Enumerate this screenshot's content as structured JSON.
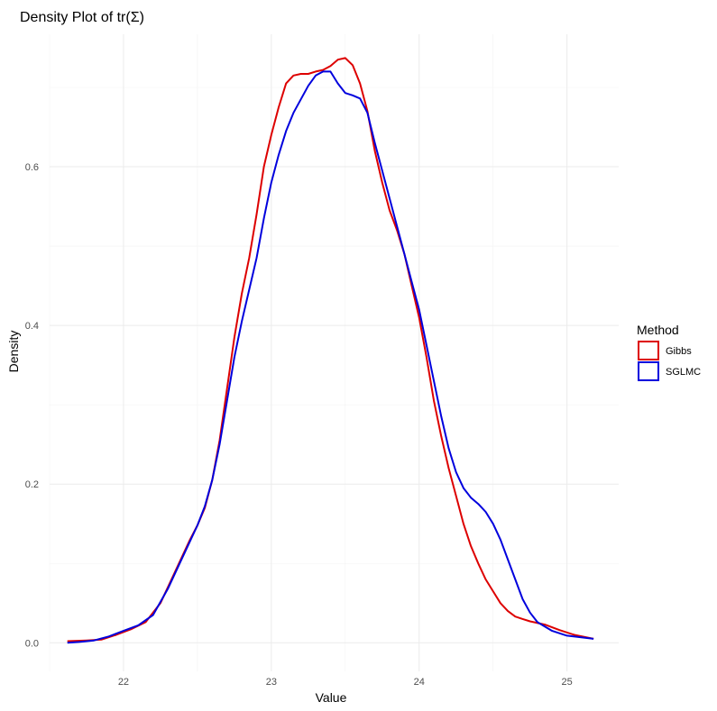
{
  "chart_data": {
    "type": "line",
    "title": "Density Plot of  tr(Σ)",
    "xlabel": "Value",
    "ylabel": "Density",
    "xlim": [
      21.5,
      25.35
    ],
    "ylim": [
      -0.036,
      0.767
    ],
    "x_ticks": [
      22,
      23,
      24,
      25
    ],
    "x_tick_labels": [
      "22",
      "23",
      "24",
      "25"
    ],
    "y_ticks": [
      0.0,
      0.2,
      0.4,
      0.6
    ],
    "y_tick_labels": [
      "0.0",
      "0.2",
      "0.4",
      "0.6"
    ],
    "grid": true,
    "legend": {
      "title": "Method",
      "position": "right",
      "entries": [
        "Gibbs",
        "SGLMC"
      ]
    },
    "series": [
      {
        "name": "Gibbs",
        "color": "#dd0000",
        "points": [
          [
            21.62,
            0.002
          ],
          [
            21.75,
            0.003
          ],
          [
            21.85,
            0.004
          ],
          [
            21.95,
            0.01
          ],
          [
            22.05,
            0.017
          ],
          [
            22.15,
            0.026
          ],
          [
            22.25,
            0.05
          ],
          [
            22.35,
            0.09
          ],
          [
            22.45,
            0.13
          ],
          [
            22.5,
            0.148
          ],
          [
            22.55,
            0.17
          ],
          [
            22.6,
            0.205
          ],
          [
            22.65,
            0.255
          ],
          [
            22.7,
            0.32
          ],
          [
            22.75,
            0.385
          ],
          [
            22.8,
            0.44
          ],
          [
            22.85,
            0.485
          ],
          [
            22.9,
            0.54
          ],
          [
            22.95,
            0.6
          ],
          [
            23.0,
            0.64
          ],
          [
            23.05,
            0.675
          ],
          [
            23.1,
            0.705
          ],
          [
            23.15,
            0.715
          ],
          [
            23.2,
            0.717
          ],
          [
            23.25,
            0.717
          ],
          [
            23.3,
            0.72
          ],
          [
            23.35,
            0.722
          ],
          [
            23.4,
            0.727
          ],
          [
            23.45,
            0.735
          ],
          [
            23.5,
            0.737
          ],
          [
            23.55,
            0.728
          ],
          [
            23.6,
            0.705
          ],
          [
            23.65,
            0.67
          ],
          [
            23.7,
            0.62
          ],
          [
            23.75,
            0.58
          ],
          [
            23.8,
            0.545
          ],
          [
            23.85,
            0.52
          ],
          [
            23.9,
            0.49
          ],
          [
            23.95,
            0.45
          ],
          [
            24.0,
            0.41
          ],
          [
            24.05,
            0.36
          ],
          [
            24.1,
            0.305
          ],
          [
            24.15,
            0.26
          ],
          [
            24.2,
            0.22
          ],
          [
            24.25,
            0.185
          ],
          [
            24.3,
            0.15
          ],
          [
            24.35,
            0.122
          ],
          [
            24.4,
            0.1
          ],
          [
            24.45,
            0.08
          ],
          [
            24.5,
            0.065
          ],
          [
            24.55,
            0.05
          ],
          [
            24.6,
            0.04
          ],
          [
            24.65,
            0.033
          ],
          [
            24.7,
            0.03
          ],
          [
            24.75,
            0.027
          ],
          [
            24.85,
            0.023
          ],
          [
            24.95,
            0.016
          ],
          [
            25.05,
            0.01
          ],
          [
            25.18,
            0.005
          ]
        ]
      },
      {
        "name": "SGLMC",
        "color": "#0000dd",
        "points": [
          [
            21.62,
            0.0
          ],
          [
            21.7,
            0.001
          ],
          [
            21.8,
            0.003
          ],
          [
            21.9,
            0.008
          ],
          [
            22.0,
            0.015
          ],
          [
            22.1,
            0.022
          ],
          [
            22.2,
            0.035
          ],
          [
            22.3,
            0.068
          ],
          [
            22.4,
            0.108
          ],
          [
            22.45,
            0.128
          ],
          [
            22.5,
            0.148
          ],
          [
            22.55,
            0.172
          ],
          [
            22.6,
            0.205
          ],
          [
            22.65,
            0.25
          ],
          [
            22.7,
            0.305
          ],
          [
            22.75,
            0.36
          ],
          [
            22.8,
            0.405
          ],
          [
            22.85,
            0.445
          ],
          [
            22.9,
            0.485
          ],
          [
            22.95,
            0.535
          ],
          [
            23.0,
            0.58
          ],
          [
            23.05,
            0.615
          ],
          [
            23.1,
            0.645
          ],
          [
            23.15,
            0.668
          ],
          [
            23.2,
            0.685
          ],
          [
            23.25,
            0.702
          ],
          [
            23.3,
            0.715
          ],
          [
            23.35,
            0.72
          ],
          [
            23.4,
            0.72
          ],
          [
            23.45,
            0.705
          ],
          [
            23.5,
            0.693
          ],
          [
            23.55,
            0.69
          ],
          [
            23.6,
            0.686
          ],
          [
            23.65,
            0.668
          ],
          [
            23.7,
            0.63
          ],
          [
            23.75,
            0.595
          ],
          [
            23.8,
            0.56
          ],
          [
            23.85,
            0.525
          ],
          [
            23.9,
            0.49
          ],
          [
            23.95,
            0.455
          ],
          [
            24.0,
            0.42
          ],
          [
            24.05,
            0.375
          ],
          [
            24.1,
            0.33
          ],
          [
            24.15,
            0.285
          ],
          [
            24.2,
            0.245
          ],
          [
            24.25,
            0.215
          ],
          [
            24.3,
            0.195
          ],
          [
            24.35,
            0.183
          ],
          [
            24.4,
            0.175
          ],
          [
            24.45,
            0.165
          ],
          [
            24.5,
            0.15
          ],
          [
            24.55,
            0.13
          ],
          [
            24.6,
            0.105
          ],
          [
            24.65,
            0.08
          ],
          [
            24.7,
            0.055
          ],
          [
            24.75,
            0.038
          ],
          [
            24.8,
            0.026
          ],
          [
            24.9,
            0.015
          ],
          [
            25.0,
            0.009
          ],
          [
            25.18,
            0.005
          ]
        ]
      }
    ]
  }
}
